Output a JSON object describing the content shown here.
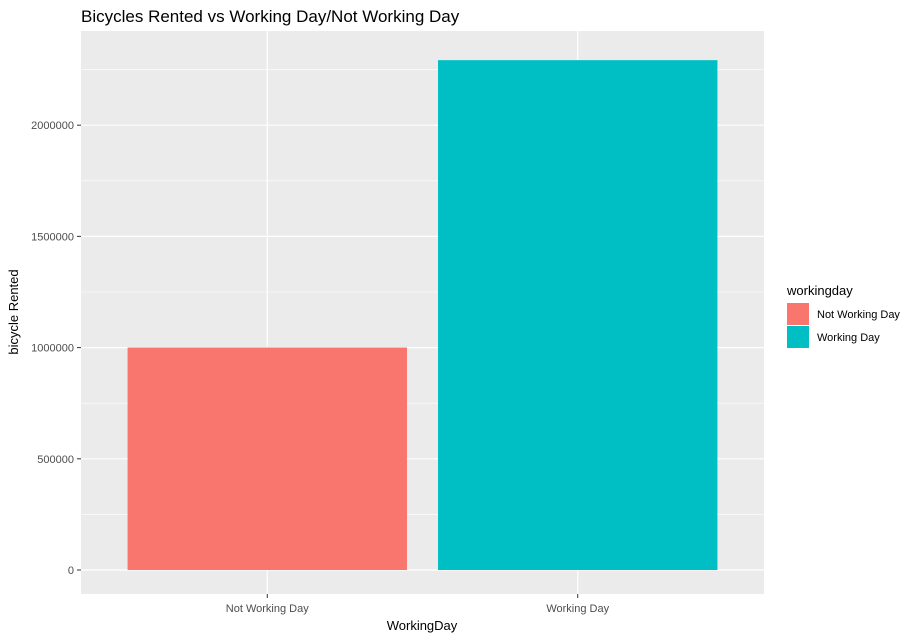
{
  "chart_data": {
    "type": "bar",
    "title": "Bicycles Rented vs Working Day/Not Working Day",
    "xlabel": "WorkingDay",
    "ylabel": "bicycle Rented",
    "categories": [
      "Not Working Day",
      "Working Day"
    ],
    "values": [
      1000269,
      2292410
    ],
    "colors": [
      "#F8766D",
      "#00BFC4"
    ],
    "ylim": [
      0,
      2410000
    ],
    "yticks": [
      0,
      500000,
      1000000,
      1500000,
      2000000
    ],
    "ytick_labels": [
      "0",
      "500000",
      "1000000",
      "1500000",
      "2000000"
    ],
    "grid": true,
    "panel_background": "#EBEBEB",
    "grid_color": "#FFFFFF",
    "legend": {
      "title": "workingday",
      "position": "right",
      "entries": [
        "Not Working Day",
        "Working Day"
      ]
    }
  }
}
